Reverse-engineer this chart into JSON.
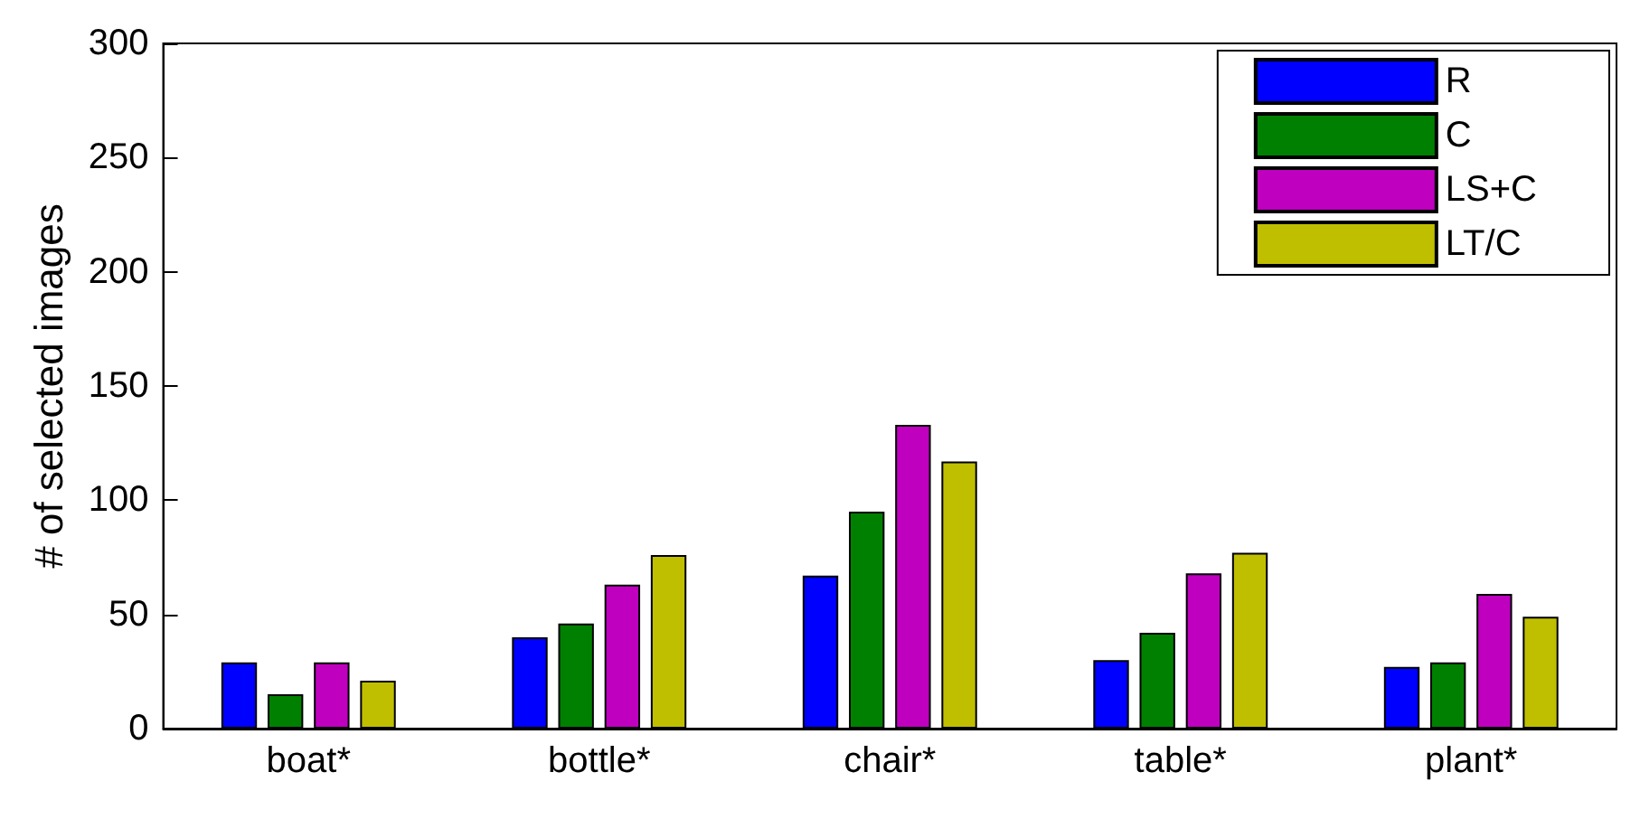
{
  "chart_data": {
    "type": "bar",
    "ylabel": "# of selected images",
    "categories": [
      "boat*",
      "bottle*",
      "chair*",
      "table*",
      "plant*"
    ],
    "series": [
      {
        "name": "R",
        "color": "#0000ff",
        "values": [
          29,
          40,
          67,
          30,
          27
        ]
      },
      {
        "name": "C",
        "color": "#008000",
        "values": [
          15,
          46,
          95,
          42,
          29
        ]
      },
      {
        "name": "LS+C",
        "color": "#bf00bf",
        "values": [
          29,
          63,
          133,
          68,
          59
        ]
      },
      {
        "name": "LT/C",
        "color": "#bfbf00",
        "values": [
          21,
          76,
          117,
          77,
          49
        ]
      }
    ],
    "ylim": [
      0,
      300
    ],
    "yticks": [
      0,
      50,
      100,
      150,
      200,
      250,
      300
    ],
    "legend": "top right",
    "grid": false
  }
}
